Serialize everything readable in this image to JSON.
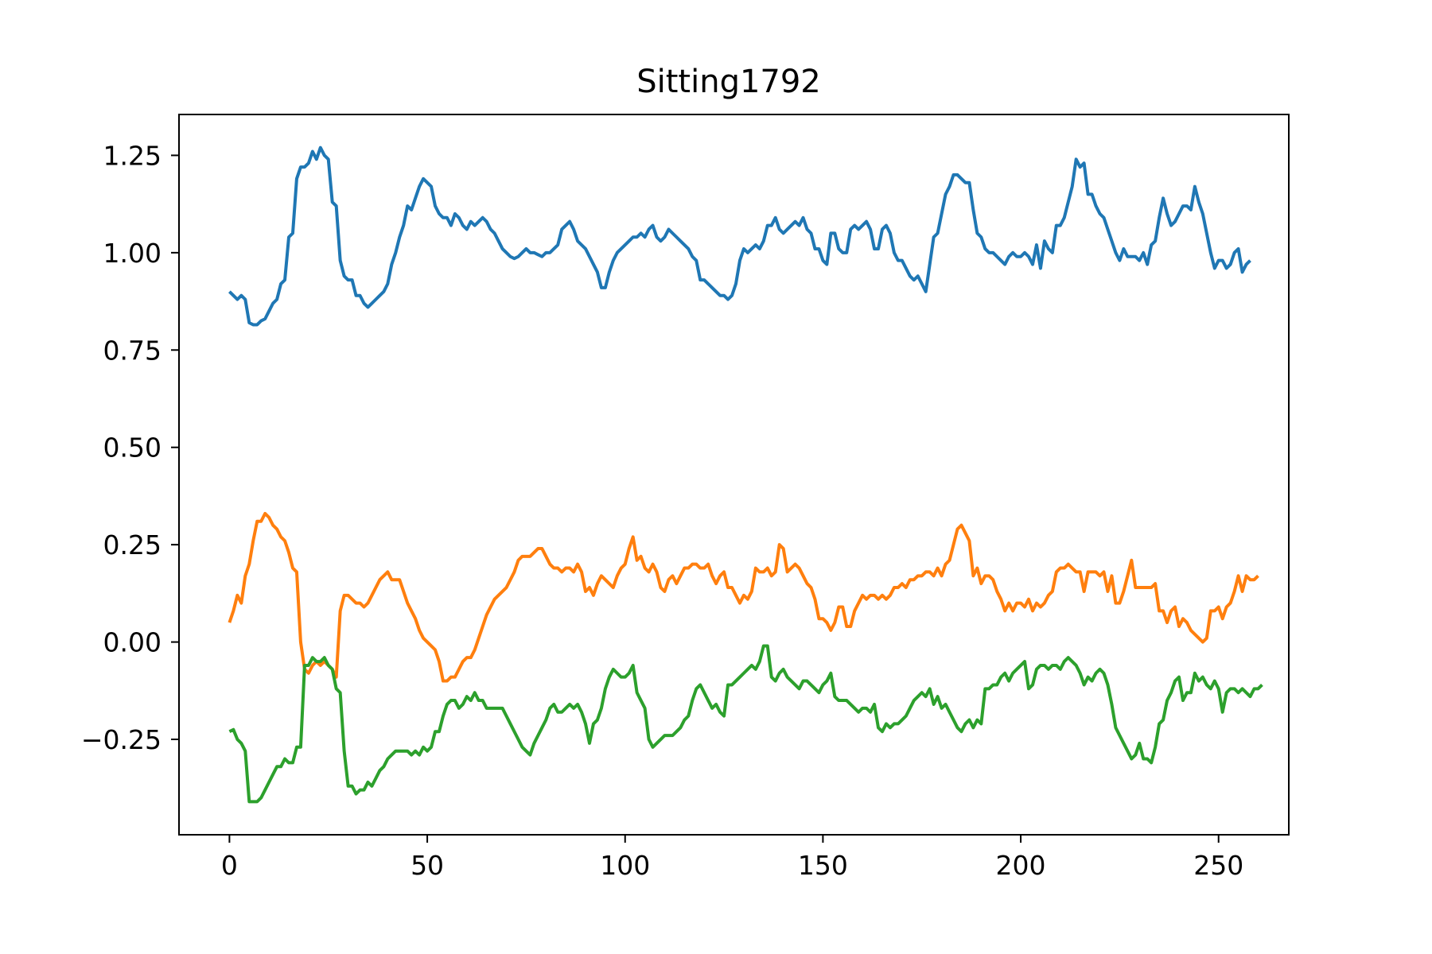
{
  "chart_data": {
    "type": "line",
    "title": "Sitting1792",
    "xlabel": "",
    "ylabel": "",
    "xlim": [
      -12.75,
      267.75
    ],
    "ylim": [
      -0.495,
      1.355
    ],
    "xticks": [
      0,
      50,
      100,
      150,
      200,
      250
    ],
    "xtick_labels": [
      "0",
      "50",
      "100",
      "150",
      "200",
      "250"
    ],
    "yticks": [
      -0.25,
      0.0,
      0.25,
      0.5,
      0.75,
      1.0,
      1.25
    ],
    "ytick_labels": [
      "−0.25",
      "0.00",
      "0.25",
      "0.50",
      "0.75",
      "1.00",
      "1.25"
    ],
    "grid": false,
    "legend": "none",
    "x": "0..255",
    "series": [
      {
        "color": "#1f77b4",
        "values": [
          0.9,
          0.89,
          0.88,
          0.89,
          0.88,
          0.82,
          0.815,
          0.815,
          0.825,
          0.83,
          0.85,
          0.87,
          0.88,
          0.92,
          0.93,
          1.04,
          1.05,
          1.19,
          1.22,
          1.22,
          1.23,
          1.26,
          1.24,
          1.27,
          1.25,
          1.24,
          1.13,
          1.12,
          0.98,
          0.94,
          0.93,
          0.93,
          0.89,
          0.89,
          0.87,
          0.86,
          0.87,
          0.88,
          0.89,
          0.9,
          0.92,
          0.97,
          1.0,
          1.04,
          1.07,
          1.12,
          1.11,
          1.14,
          1.17,
          1.19,
          1.18,
          1.17,
          1.12,
          1.1,
          1.09,
          1.09,
          1.07,
          1.1,
          1.09,
          1.07,
          1.06,
          1.08,
          1.07,
          1.08,
          1.09,
          1.08,
          1.06,
          1.05,
          1.03,
          1.01,
          1.0,
          0.99,
          0.985,
          0.99,
          1.0,
          1.01,
          1.0,
          1.0,
          0.995,
          0.99,
          1.0,
          1.0,
          1.01,
          1.02,
          1.06,
          1.07,
          1.08,
          1.06,
          1.03,
          1.02,
          1.01,
          0.99,
          0.97,
          0.95,
          0.91,
          0.91,
          0.95,
          0.98,
          1.0,
          1.01,
          1.02,
          1.03,
          1.04,
          1.04,
          1.05,
          1.04,
          1.06,
          1.07,
          1.04,
          1.03,
          1.04,
          1.06,
          1.05,
          1.04,
          1.03,
          1.02,
          1.01,
          0.99,
          0.98,
          0.93,
          0.93,
          0.92,
          0.91,
          0.9,
          0.89,
          0.89,
          0.88,
          0.89,
          0.92,
          0.98,
          1.01,
          1.0,
          1.01,
          1.02,
          1.01,
          1.03,
          1.07,
          1.07,
          1.09,
          1.06,
          1.05,
          1.06,
          1.07,
          1.08,
          1.07,
          1.09,
          1.06,
          1.05,
          1.01,
          1.01,
          0.98,
          0.97,
          1.05,
          1.05,
          1.01,
          1.0,
          1.0,
          1.06,
          1.07,
          1.06,
          1.07,
          1.08,
          1.06,
          1.01,
          1.01,
          1.06,
          1.07,
          1.05,
          1.0,
          0.98,
          0.98,
          0.96,
          0.94,
          0.93,
          0.94,
          0.92,
          0.9,
          0.97,
          1.04,
          1.05,
          1.1,
          1.15,
          1.17,
          1.2,
          1.2,
          1.19,
          1.18,
          1.18,
          1.11,
          1.05,
          1.04,
          1.01,
          1.0,
          1.0,
          0.99,
          0.98,
          0.97,
          0.99,
          1.0,
          0.99,
          0.99,
          1.0,
          0.99,
          0.97,
          1.02,
          0.96,
          1.03,
          1.01,
          1.0,
          1.07,
          1.07,
          1.09,
          1.13,
          1.17,
          1.24,
          1.22,
          1.23,
          1.15,
          1.15,
          1.12,
          1.1,
          1.09,
          1.06,
          1.03,
          1.0,
          0.98,
          1.01,
          0.99,
          0.99,
          0.99,
          0.98,
          1.0,
          0.97,
          1.02,
          1.03,
          1.09,
          1.14,
          1.1,
          1.07,
          1.08,
          1.1,
          1.12,
          1.12,
          1.11,
          1.17,
          1.13,
          1.1,
          1.05,
          1.0,
          0.96,
          0.98,
          0.98,
          0.96,
          0.97,
          1.0,
          1.01,
          0.95,
          0.97,
          0.98
        ]
      },
      {
        "color": "#ff7f0e",
        "values": [
          0.05,
          0.08,
          0.12,
          0.1,
          0.17,
          0.2,
          0.26,
          0.31,
          0.31,
          0.33,
          0.32,
          0.3,
          0.29,
          0.27,
          0.26,
          0.23,
          0.19,
          0.18,
          0.0,
          -0.07,
          -0.08,
          -0.06,
          -0.05,
          -0.06,
          -0.05,
          -0.06,
          -0.07,
          -0.09,
          0.08,
          0.12,
          0.12,
          0.11,
          0.1,
          0.1,
          0.09,
          0.1,
          0.12,
          0.14,
          0.16,
          0.17,
          0.18,
          0.16,
          0.16,
          0.16,
          0.13,
          0.1,
          0.08,
          0.06,
          0.03,
          0.01,
          0.0,
          -0.01,
          -0.02,
          -0.05,
          -0.1,
          -0.1,
          -0.09,
          -0.09,
          -0.07,
          -0.05,
          -0.04,
          -0.04,
          -0.02,
          0.01,
          0.04,
          0.07,
          0.09,
          0.11,
          0.12,
          0.13,
          0.14,
          0.16,
          0.18,
          0.21,
          0.22,
          0.22,
          0.22,
          0.23,
          0.24,
          0.24,
          0.22,
          0.2,
          0.19,
          0.19,
          0.18,
          0.19,
          0.19,
          0.18,
          0.2,
          0.18,
          0.13,
          0.14,
          0.12,
          0.15,
          0.17,
          0.16,
          0.15,
          0.14,
          0.17,
          0.19,
          0.2,
          0.24,
          0.27,
          0.21,
          0.22,
          0.19,
          0.18,
          0.2,
          0.18,
          0.14,
          0.13,
          0.16,
          0.17,
          0.15,
          0.17,
          0.19,
          0.19,
          0.2,
          0.2,
          0.19,
          0.19,
          0.2,
          0.17,
          0.15,
          0.17,
          0.18,
          0.14,
          0.14,
          0.12,
          0.1,
          0.12,
          0.11,
          0.13,
          0.19,
          0.18,
          0.18,
          0.19,
          0.17,
          0.18,
          0.25,
          0.24,
          0.18,
          0.19,
          0.2,
          0.19,
          0.17,
          0.15,
          0.14,
          0.11,
          0.06,
          0.06,
          0.05,
          0.03,
          0.05,
          0.09,
          0.09,
          0.04,
          0.04,
          0.08,
          0.1,
          0.12,
          0.11,
          0.12,
          0.12,
          0.11,
          0.12,
          0.11,
          0.12,
          0.14,
          0.14,
          0.15,
          0.14,
          0.16,
          0.16,
          0.17,
          0.17,
          0.18,
          0.18,
          0.17,
          0.19,
          0.17,
          0.2,
          0.21,
          0.25,
          0.29,
          0.3,
          0.28,
          0.26,
          0.17,
          0.19,
          0.15,
          0.17,
          0.17,
          0.16,
          0.13,
          0.11,
          0.08,
          0.1,
          0.08,
          0.1,
          0.1,
          0.09,
          0.11,
          0.08,
          0.1,
          0.09,
          0.1,
          0.12,
          0.13,
          0.18,
          0.19,
          0.19,
          0.2,
          0.19,
          0.18,
          0.18,
          0.13,
          0.18,
          0.18,
          0.18,
          0.17,
          0.18,
          0.13,
          0.17,
          0.1,
          0.1,
          0.13,
          0.17,
          0.21,
          0.14,
          0.14,
          0.14,
          0.14,
          0.14,
          0.15,
          0.08,
          0.08,
          0.05,
          0.08,
          0.09,
          0.04,
          0.06,
          0.05,
          0.03,
          0.02,
          0.01,
          0.0,
          0.01,
          0.08,
          0.08,
          0.09,
          0.06,
          0.09,
          0.1,
          0.13,
          0.17,
          0.13,
          0.17,
          0.16,
          0.16,
          0.17
        ]
      },
      {
        "color": "#2ca02c",
        "values": [
          -0.23,
          -0.225,
          -0.25,
          -0.26,
          -0.28,
          -0.41,
          -0.41,
          -0.41,
          -0.4,
          -0.38,
          -0.36,
          -0.34,
          -0.32,
          -0.32,
          -0.3,
          -0.31,
          -0.31,
          -0.27,
          -0.27,
          -0.06,
          -0.06,
          -0.04,
          -0.05,
          -0.05,
          -0.04,
          -0.06,
          -0.07,
          -0.12,
          -0.13,
          -0.28,
          -0.37,
          -0.37,
          -0.39,
          -0.38,
          -0.38,
          -0.36,
          -0.37,
          -0.35,
          -0.33,
          -0.32,
          -0.3,
          -0.29,
          -0.28,
          -0.28,
          -0.28,
          -0.28,
          -0.29,
          -0.28,
          -0.29,
          -0.27,
          -0.28,
          -0.27,
          -0.23,
          -0.23,
          -0.19,
          -0.16,
          -0.15,
          -0.15,
          -0.17,
          -0.16,
          -0.14,
          -0.15,
          -0.13,
          -0.15,
          -0.15,
          -0.17,
          -0.17,
          -0.17,
          -0.17,
          -0.17,
          -0.19,
          -0.21,
          -0.23,
          -0.25,
          -0.27,
          -0.28,
          -0.29,
          -0.26,
          -0.24,
          -0.22,
          -0.2,
          -0.17,
          -0.16,
          -0.18,
          -0.18,
          -0.17,
          -0.16,
          -0.17,
          -0.16,
          -0.18,
          -0.21,
          -0.26,
          -0.21,
          -0.2,
          -0.17,
          -0.12,
          -0.09,
          -0.07,
          -0.08,
          -0.09,
          -0.09,
          -0.08,
          -0.06,
          -0.13,
          -0.15,
          -0.17,
          -0.25,
          -0.27,
          -0.26,
          -0.25,
          -0.24,
          -0.24,
          -0.24,
          -0.23,
          -0.22,
          -0.2,
          -0.19,
          -0.15,
          -0.12,
          -0.11,
          -0.13,
          -0.15,
          -0.17,
          -0.16,
          -0.18,
          -0.19,
          -0.11,
          -0.11,
          -0.1,
          -0.09,
          -0.08,
          -0.07,
          -0.06,
          -0.07,
          -0.05,
          -0.01,
          -0.01,
          -0.09,
          -0.1,
          -0.08,
          -0.07,
          -0.09,
          -0.1,
          -0.11,
          -0.12,
          -0.1,
          -0.1,
          -0.11,
          -0.12,
          -0.13,
          -0.11,
          -0.1,
          -0.08,
          -0.14,
          -0.15,
          -0.15,
          -0.15,
          -0.16,
          -0.17,
          -0.18,
          -0.17,
          -0.17,
          -0.18,
          -0.16,
          -0.22,
          -0.23,
          -0.21,
          -0.22,
          -0.21,
          -0.21,
          -0.2,
          -0.19,
          -0.17,
          -0.15,
          -0.14,
          -0.13,
          -0.14,
          -0.12,
          -0.16,
          -0.14,
          -0.17,
          -0.16,
          -0.18,
          -0.2,
          -0.22,
          -0.23,
          -0.21,
          -0.2,
          -0.22,
          -0.2,
          -0.21,
          -0.12,
          -0.12,
          -0.11,
          -0.11,
          -0.09,
          -0.08,
          -0.1,
          -0.08,
          -0.07,
          -0.06,
          -0.05,
          -0.12,
          -0.11,
          -0.07,
          -0.06,
          -0.06,
          -0.07,
          -0.06,
          -0.06,
          -0.07,
          -0.05,
          -0.04,
          -0.05,
          -0.06,
          -0.08,
          -0.11,
          -0.09,
          -0.1,
          -0.08,
          -0.07,
          -0.08,
          -0.11,
          -0.16,
          -0.22,
          -0.24,
          -0.26,
          -0.28,
          -0.3,
          -0.29,
          -0.26,
          -0.3,
          -0.3,
          -0.31,
          -0.27,
          -0.21,
          -0.2,
          -0.15,
          -0.13,
          -0.1,
          -0.09,
          -0.15,
          -0.13,
          -0.13,
          -0.08,
          -0.1,
          -0.09,
          -0.11,
          -0.12,
          -0.1,
          -0.12,
          -0.18,
          -0.13,
          -0.12,
          -0.12,
          -0.13,
          -0.12,
          -0.13,
          -0.14,
          -0.12,
          -0.12,
          -0.11
        ]
      }
    ]
  }
}
